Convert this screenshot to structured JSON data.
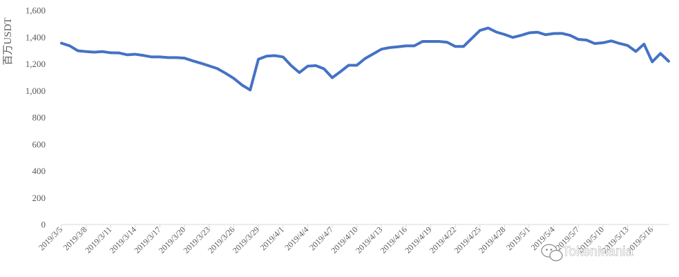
{
  "chart_data": {
    "type": "line",
    "ylabel": "百万USDT",
    "ylim": [
      0,
      1600
    ],
    "yticks": [
      "0",
      "200",
      "400",
      "600",
      "800",
      "1,000",
      "1,200",
      "1,400",
      "1,600"
    ],
    "x_tick_labels": [
      "2019/3/5",
      "2019/3/8",
      "2019/3/11",
      "2019/3/14",
      "2019/3/17",
      "2019/3/20",
      "2019/3/23",
      "2019/3/26",
      "2019/3/29",
      "2019/4/1",
      "2019/4/4",
      "2019/4/7",
      "2019/4/10",
      "2019/4/13",
      "2019/4/16",
      "2019/4/19",
      "2019/4/22",
      "2019/4/25",
      "2019/4/28",
      "2019/5/1",
      "2019/5/4",
      "2019/5/7",
      "2019/5/10",
      "2019/5/13",
      "2019/5/16"
    ],
    "line_color": "#4472C4",
    "grid": false,
    "series": [
      {
        "values": [
          1355,
          1335,
          1298,
          1292,
          1288,
          1292,
          1283,
          1282,
          1268,
          1272,
          1263,
          1252,
          1252,
          1247,
          1247,
          1243,
          1223,
          1205,
          1185,
          1165,
          1130,
          1092,
          1042,
          1005,
          1235,
          1258,
          1262,
          1252,
          1187,
          1135,
          1183,
          1187,
          1163,
          1097,
          1142,
          1190,
          1190,
          1240,
          1275,
          1310,
          1322,
          1328,
          1335,
          1335,
          1368,
          1368,
          1368,
          1362,
          1330,
          1330,
          1390,
          1450,
          1468,
          1438,
          1420,
          1398,
          1413,
          1432,
          1437,
          1418,
          1427,
          1428,
          1413,
          1383,
          1378,
          1352,
          1358,
          1372,
          1353,
          1338,
          1293,
          1348,
          1215,
          1278,
          1220
        ]
      }
    ]
  },
  "watermark": {
    "text": "TokenMania",
    "icon": "wechat-icon"
  }
}
